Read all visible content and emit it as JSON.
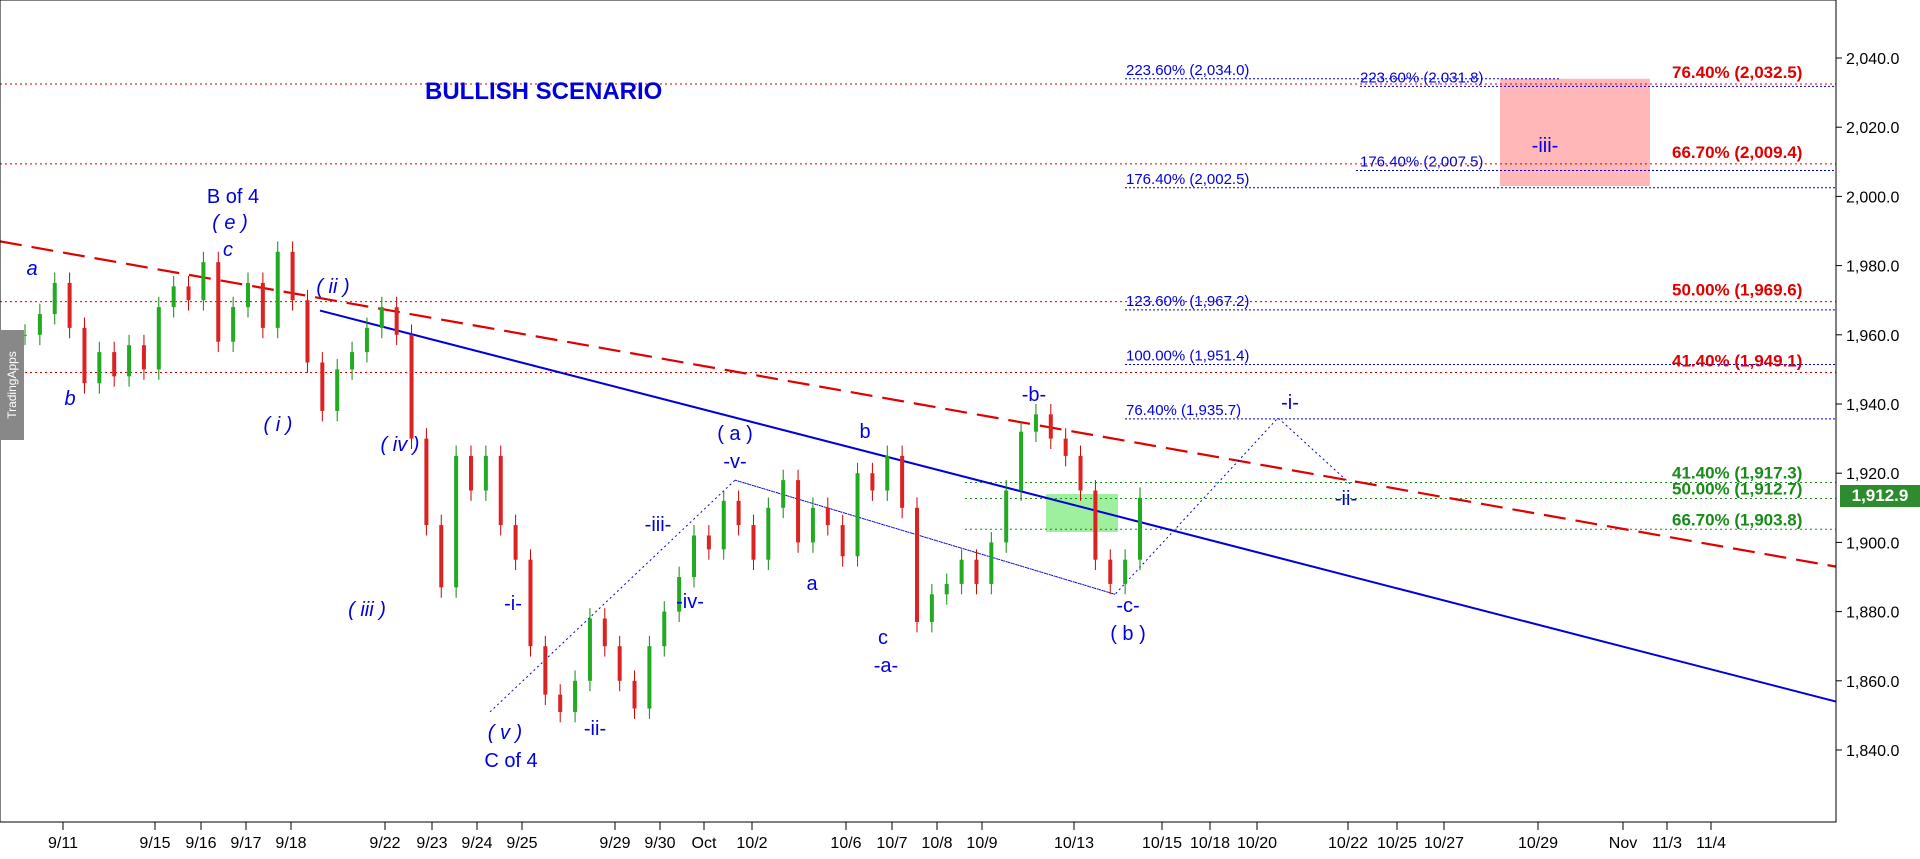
{
  "chart_data": {
    "type": "candlestick",
    "title": "BULLISH SCENARIO",
    "ylim": [
      1820,
      2050
    ],
    "y_ticks": [
      "1,840.0",
      "1,860.0",
      "1,880.0",
      "1,900.0",
      "1,920.0",
      "1,940.0",
      "1,960.0",
      "1,980.0",
      "2,000.0",
      "2,020.0",
      "2,040.0"
    ],
    "y_tick_values": [
      1840,
      1860,
      1880,
      1900,
      1920,
      1940,
      1960,
      1980,
      2000,
      2020,
      2040
    ],
    "x_ticks": [
      "9/11",
      "9/15",
      "9/16",
      "9/17",
      "9/18",
      "9/22",
      "9/23",
      "9/24",
      "9/25",
      "9/29",
      "9/30",
      "Oct",
      "10/2",
      "10/6",
      "10/7",
      "10/8",
      "10/9",
      "10/13",
      "10/15",
      "10/18",
      "10/20",
      "10/22",
      "10/25",
      "10/27",
      "10/29",
      "Nov",
      "11/3",
      "11/4"
    ],
    "last_price": "1,912.9",
    "last_price_value": 1912.9,
    "price_path": [
      [
        0,
        1960
      ],
      [
        1,
        1966
      ],
      [
        2,
        1975
      ],
      [
        3,
        1962
      ],
      [
        4,
        1946
      ],
      [
        5,
        1955
      ],
      [
        6,
        1948
      ],
      [
        7,
        1957
      ],
      [
        8,
        1950
      ],
      [
        9,
        1968
      ],
      [
        10,
        1974
      ],
      [
        11,
        1970
      ],
      [
        12,
        1981
      ],
      [
        13,
        1958
      ],
      [
        14,
        1968
      ],
      [
        15,
        1975
      ],
      [
        16,
        1962
      ],
      [
        17,
        1984
      ],
      [
        18,
        1970
      ],
      [
        19,
        1952
      ],
      [
        20,
        1938
      ],
      [
        21,
        1950
      ],
      [
        22,
        1955
      ],
      [
        23,
        1962
      ],
      [
        24,
        1968
      ],
      [
        25,
        1960
      ],
      [
        26,
        1930
      ],
      [
        27,
        1905
      ],
      [
        28,
        1887
      ],
      [
        29,
        1925
      ],
      [
        30,
        1915
      ],
      [
        31,
        1925
      ],
      [
        32,
        1905
      ],
      [
        33,
        1895
      ],
      [
        34,
        1870
      ],
      [
        35,
        1856
      ],
      [
        36,
        1851
      ],
      [
        37,
        1860
      ],
      [
        38,
        1878
      ],
      [
        39,
        1870
      ],
      [
        40,
        1860
      ],
      [
        41,
        1852
      ],
      [
        42,
        1870
      ],
      [
        43,
        1880
      ],
      [
        44,
        1890
      ],
      [
        45,
        1902
      ],
      [
        46,
        1898
      ],
      [
        47,
        1912
      ],
      [
        48,
        1905
      ],
      [
        49,
        1895
      ],
      [
        50,
        1910
      ],
      [
        51,
        1918
      ],
      [
        52,
        1900
      ],
      [
        53,
        1910
      ],
      [
        54,
        1905
      ],
      [
        55,
        1896
      ],
      [
        56,
        1920
      ],
      [
        57,
        1915
      ],
      [
        58,
        1925
      ],
      [
        59,
        1910
      ],
      [
        60,
        1877
      ],
      [
        61,
        1885
      ],
      [
        62,
        1888
      ],
      [
        63,
        1895
      ],
      [
        64,
        1888
      ],
      [
        65,
        1900
      ],
      [
        66,
        1915
      ],
      [
        67,
        1932
      ],
      [
        68,
        1937
      ],
      [
        69,
        1930
      ],
      [
        70,
        1925
      ],
      [
        71,
        1915
      ],
      [
        72,
        1895
      ],
      [
        73,
        1888
      ],
      [
        74,
        1895
      ],
      [
        75,
        1912.9
      ]
    ],
    "fib_blue": [
      {
        "label": "223.60% (2,034.0)",
        "value": 2034.0
      },
      {
        "label": "223.60% (2,031.8)",
        "value": 2031.8
      },
      {
        "label": "176.40% (2,007.5)",
        "value": 2007.5
      },
      {
        "label": "176.40% (2,002.5)",
        "value": 2002.5
      },
      {
        "label": "123.60% (1,967.2)",
        "value": 1967.2
      },
      {
        "label": "100.00% (1,951.4)",
        "value": 1951.4
      },
      {
        "label": "76.40% (1,935.7)",
        "value": 1935.7
      }
    ],
    "fib_red": [
      {
        "label": "76.40% (2,032.5)",
        "value": 2032.5
      },
      {
        "label": "66.70% (2,009.4)",
        "value": 2009.4
      },
      {
        "label": "50.00% (1,969.6)",
        "value": 1969.6
      },
      {
        "label": "41.40% (1,949.1)",
        "value": 1949.1
      }
    ],
    "fib_green": [
      {
        "label": "41.40% (1,917.3)",
        "value": 1917.3
      },
      {
        "label": "50.00% (1,912.7)",
        "value": 1912.7
      },
      {
        "label": "66.70% (1,903.8)",
        "value": 1903.8
      }
    ],
    "wave_labels": [
      {
        "text": "a",
        "style": "italic"
      },
      {
        "text": "b",
        "style": "italic"
      },
      {
        "text": "B of 4",
        "style": "normal"
      },
      {
        "text": "( e )",
        "style": "italic"
      },
      {
        "text": "c",
        "style": "italic"
      },
      {
        "text": "( ii )",
        "style": "italic"
      },
      {
        "text": "( i )",
        "style": "italic"
      },
      {
        "text": "( iv )",
        "style": "italic"
      },
      {
        "text": "( iii )",
        "style": "italic"
      },
      {
        "text": "( v )",
        "style": "italic"
      },
      {
        "text": "C of 4",
        "style": "normal"
      },
      {
        "text": "-i-",
        "style": "normal"
      },
      {
        "text": "-ii-",
        "style": "normal"
      },
      {
        "text": "-iii-",
        "style": "normal"
      },
      {
        "text": "-iv-",
        "style": "normal"
      },
      {
        "text": "( a )",
        "style": "normal"
      },
      {
        "text": "-v-",
        "style": "normal"
      },
      {
        "text": "a",
        "style": "normal"
      },
      {
        "text": "b",
        "style": "normal"
      },
      {
        "text": "c",
        "style": "normal"
      },
      {
        "text": "-a-",
        "style": "normal"
      },
      {
        "text": "-b-",
        "style": "normal"
      },
      {
        "text": "-c-",
        "style": "normal"
      },
      {
        "text": "( b )",
        "style": "normal"
      },
      {
        "text": "-i-",
        "style": "normal"
      },
      {
        "text": "-ii-",
        "style": "normal"
      },
      {
        "text": "-iii-",
        "style": "normal"
      }
    ]
  },
  "watermark": "TradingApps",
  "colors": {
    "blue": "#0000dd",
    "red": "#e00000",
    "green": "#1a8a1a",
    "pink_box": "#ffb3b3",
    "green_box": "#99ee99"
  }
}
